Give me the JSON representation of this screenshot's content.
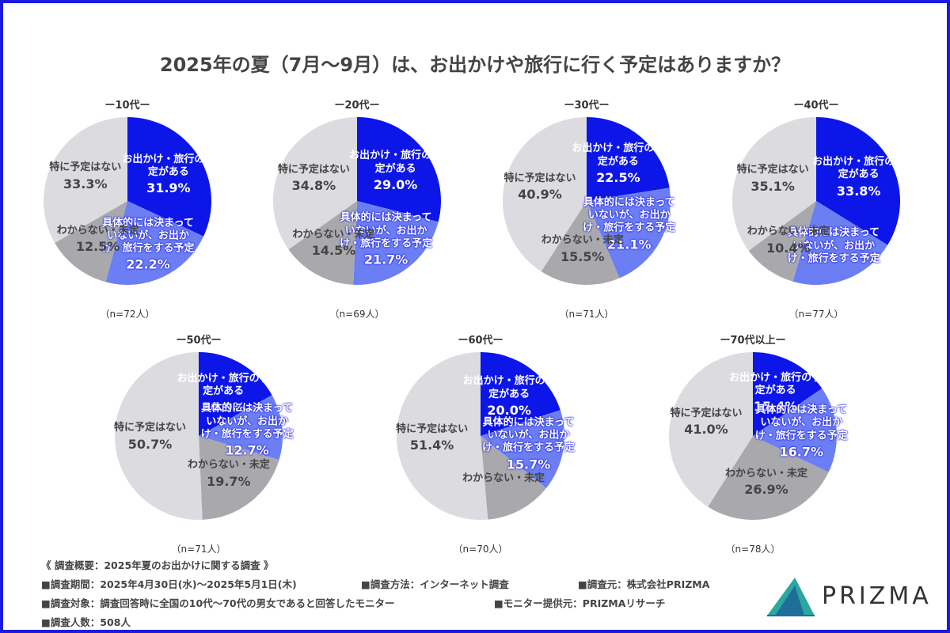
{
  "title": "2025年の夏（7月〜9月）は、お出かけや旅行に行く予定はありますか？",
  "footer": {
    "heading": "《 調査概要：2025年夏のお出かけに関する調査 》",
    "items": [
      "■調査期間：2025年4月30日(水)〜2025年5月1日(木)",
      "■調査方法：インターネット調査",
      "■調査元：株式会社PRIZMA",
      "■調査対象：調査回答時に全国の10代〜70代の男女であると回答したモニター",
      "■モニター提供元：PRIZMAリサーチ",
      "■調査人数：508人"
    ],
    "logo": "PRIZMA"
  },
  "chart_data": [
    {
      "type": "pie",
      "title": "ー10代ー",
      "note": "（n=72人）",
      "categories": [
        "お出かけ・旅行の予定がある",
        "具体的には決まっていないが、お出かけ・旅行をする予定",
        "わからない・未定",
        "特に予定はない"
      ],
      "values": [
        31.9,
        22.2,
        12.5,
        33.3
      ],
      "value_labels": [
        "31.9%",
        "22.2%",
        "12.5%",
        "33.3%"
      ],
      "colors": [
        "#0d16e8",
        "#6b7ef4",
        "#a9a9ad",
        "#dcdce0"
      ]
    },
    {
      "type": "pie",
      "title": "ー20代ー",
      "note": "（n=69人）",
      "categories": [
        "お出かけ・旅行の予定がある",
        "具体的には決まっていないが、お出かけ・旅行をする予定",
        "わからない・未定",
        "特に予定はない"
      ],
      "values": [
        29.0,
        21.7,
        14.5,
        34.8
      ],
      "value_labels": [
        "29.0%",
        "21.7%",
        "14.5%",
        "34.8%"
      ],
      "colors": [
        "#0d16e8",
        "#6b7ef4",
        "#a9a9ad",
        "#dcdce0"
      ]
    },
    {
      "type": "pie",
      "title": "ー30代ー",
      "note": "（n=71人）",
      "categories": [
        "お出かけ・旅行の予定がある",
        "具体的には決まっていないが、お出かけ・旅行をする予定",
        "わからない・未定",
        "特に予定はない"
      ],
      "values": [
        22.5,
        21.1,
        15.5,
        40.9
      ],
      "value_labels": [
        "22.5%",
        "21.1%",
        "15.5%",
        "40.9%"
      ],
      "colors": [
        "#0d16e8",
        "#6b7ef4",
        "#a9a9ad",
        "#dcdce0"
      ]
    },
    {
      "type": "pie",
      "title": "ー40代ー",
      "note": "（n=77人）",
      "categories": [
        "お出かけ・旅行の予定がある",
        "具体的には決まっていないが、お出かけ・旅行をする予定",
        "わからない・未定",
        "特に予定はない"
      ],
      "values": [
        33.8,
        20.7,
        10.4,
        35.1
      ],
      "value_labels": [
        "33.8%",
        null,
        "10.4%",
        "35.1%"
      ],
      "colors": [
        "#0d16e8",
        "#6b7ef4",
        "#a9a9ad",
        "#dcdce0"
      ]
    },
    {
      "type": "pie",
      "title": "ー50代ー",
      "note": "（n=71人）",
      "categories": [
        "お出かけ・旅行の予定がある",
        "具体的には決まっていないが、お出かけ・旅行をする予定",
        "わからない・未定",
        "特に予定はない"
      ],
      "values": [
        16.9,
        12.7,
        19.7,
        50.7
      ],
      "value_labels": [
        "16.9%",
        "12.7%",
        "19.7%",
        "50.7%"
      ],
      "colors": [
        "#0d16e8",
        "#6b7ef4",
        "#a9a9ad",
        "#dcdce0"
      ]
    },
    {
      "type": "pie",
      "title": "ー60代ー",
      "note": "（n=70人）",
      "categories": [
        "お出かけ・旅行の予定がある",
        "具体的には決まっていないが、お出かけ・旅行をする予定",
        "わからない・未定",
        "特に予定はない"
      ],
      "values": [
        20.0,
        15.7,
        12.9,
        51.4
      ],
      "value_labels": [
        "20.0%",
        "15.7%",
        null,
        "51.4%"
      ],
      "colors": [
        "#0d16e8",
        "#6b7ef4",
        "#a9a9ad",
        "#dcdce0"
      ]
    },
    {
      "type": "pie",
      "title": "ー70代以上ー",
      "note": "（n=78人）",
      "categories": [
        "お出かけ・旅行の予定がある",
        "具体的には決まっていないが、お出かけ・旅行をする予定",
        "わからない・未定",
        "特に予定はない"
      ],
      "values": [
        15.4,
        16.7,
        26.9,
        41.0
      ],
      "value_labels": [
        "15.4%",
        "16.7%",
        "26.9%",
        "41.0%"
      ],
      "colors": [
        "#0d16e8",
        "#6b7ef4",
        "#a9a9ad",
        "#dcdce0"
      ]
    }
  ]
}
